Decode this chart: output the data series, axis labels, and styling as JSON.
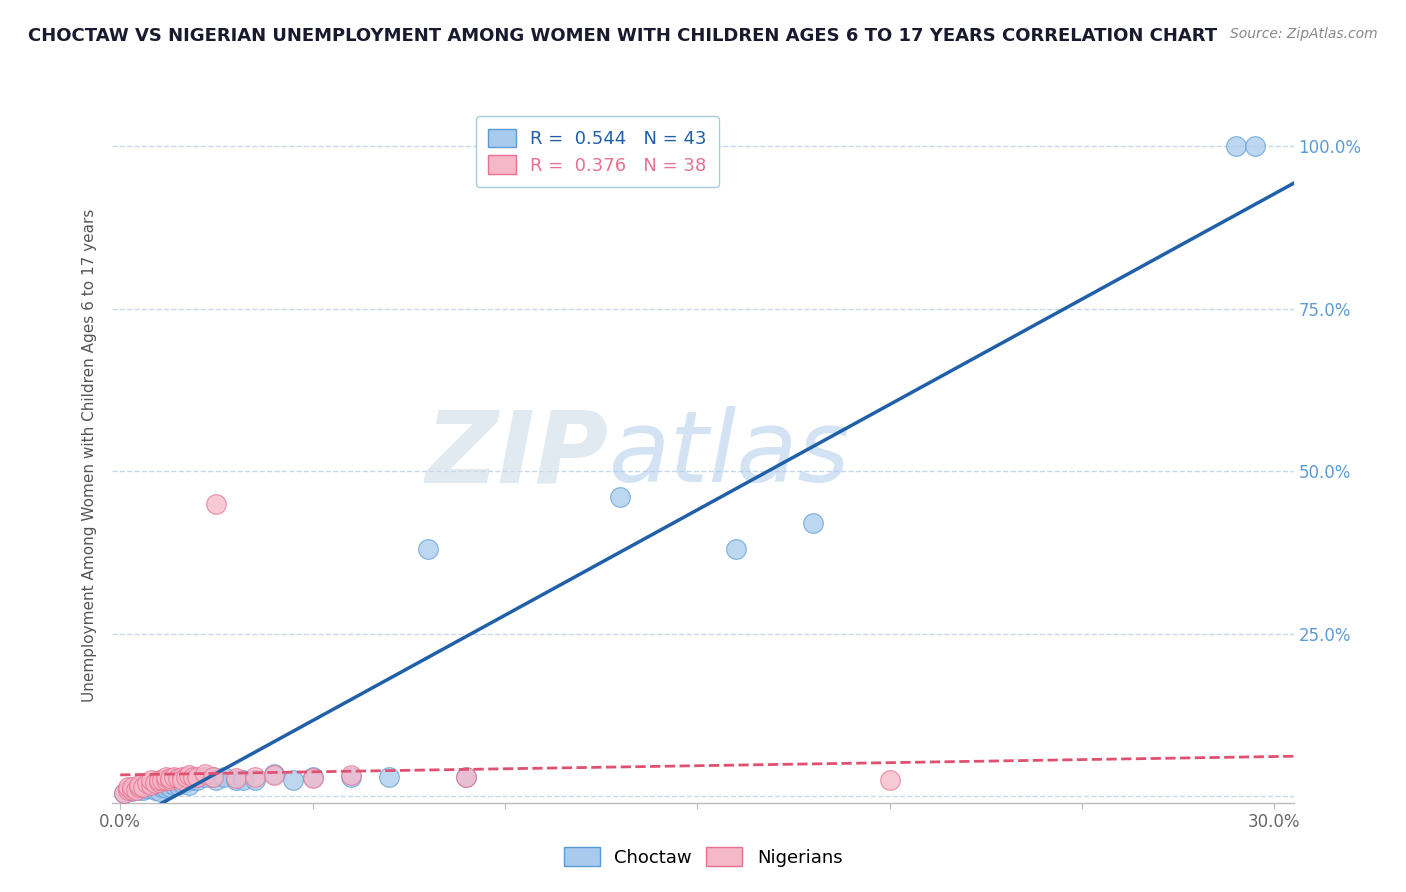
{
  "title": "CHOCTAW VS NIGERIAN UNEMPLOYMENT AMONG WOMEN WITH CHILDREN AGES 6 TO 17 YEARS CORRELATION CHART",
  "source": "Source: ZipAtlas.com",
  "ylabel": "Unemployment Among Women with Children Ages 6 to 17 years",
  "xlim": [
    -0.002,
    0.305
  ],
  "ylim": [
    -0.01,
    1.06
  ],
  "xticks": [
    0.0,
    0.05,
    0.1,
    0.15,
    0.2,
    0.25,
    0.3
  ],
  "xticklabels": [
    "0.0%",
    "",
    "",
    "",
    "",
    "",
    "30.0%"
  ],
  "yticks": [
    0.0,
    0.25,
    0.5,
    0.75,
    1.0
  ],
  "yticklabels_left": [
    "",
    "",
    "",
    "",
    ""
  ],
  "yticklabels_right": [
    "",
    "25.0%",
    "50.0%",
    "75.0%",
    "100.0%"
  ],
  "choctaw_color": "#A8CAED",
  "choctaw_edge_color": "#5B9BD5",
  "nigerian_color": "#F4B8C8",
  "nigerian_edge_color": "#E87090",
  "choctaw_line_color": "#2060A8",
  "nigerian_line_color": "#E05070",
  "choctaw_R": 0.544,
  "choctaw_N": 43,
  "nigerian_R": 0.376,
  "nigerian_N": 38,
  "watermark_zip": "ZIP",
  "watermark_atlas": "atlas",
  "background_color": "#FFFFFF",
  "grid_color": "#C8D8E8",
  "title_color": "#1A1A2E",
  "axis_label_color": "#555555",
  "right_tick_color": "#5B9BD5",
  "legend_text_color": "#2060A8",
  "legend_n_color": "#2060A8",
  "choctaw_x": [
    0.001,
    0.003,
    0.005,
    0.005,
    0.006,
    0.007,
    0.008,
    0.009,
    0.01,
    0.01,
    0.011,
    0.012,
    0.012,
    0.013,
    0.013,
    0.014,
    0.015,
    0.015,
    0.016,
    0.017,
    0.018,
    0.018,
    0.019,
    0.02,
    0.022,
    0.024,
    0.025,
    0.027,
    0.03,
    0.032,
    0.035,
    0.04,
    0.045,
    0.05,
    0.06,
    0.07,
    0.08,
    0.09,
    0.13,
    0.16,
    0.18,
    0.29,
    0.295
  ],
  "choctaw_y": [
    0.005,
    0.008,
    0.01,
    0.015,
    0.01,
    0.012,
    0.015,
    0.01,
    0.018,
    0.008,
    0.015,
    0.018,
    0.012,
    0.02,
    0.015,
    0.018,
    0.022,
    0.018,
    0.02,
    0.022,
    0.025,
    0.018,
    0.025,
    0.025,
    0.03,
    0.03,
    0.025,
    0.03,
    0.025,
    0.025,
    0.025,
    0.035,
    0.025,
    0.03,
    0.03,
    0.03,
    0.38,
    0.03,
    0.46,
    0.38,
    0.42,
    1.0,
    1.0
  ],
  "nigerian_x": [
    0.001,
    0.002,
    0.002,
    0.003,
    0.003,
    0.004,
    0.005,
    0.005,
    0.006,
    0.007,
    0.008,
    0.008,
    0.009,
    0.01,
    0.01,
    0.011,
    0.012,
    0.012,
    0.013,
    0.013,
    0.014,
    0.015,
    0.016,
    0.016,
    0.017,
    0.018,
    0.019,
    0.02,
    0.022,
    0.024,
    0.025,
    0.03,
    0.035,
    0.04,
    0.05,
    0.06,
    0.09,
    0.2
  ],
  "nigerian_y": [
    0.005,
    0.01,
    0.015,
    0.01,
    0.015,
    0.01,
    0.015,
    0.018,
    0.015,
    0.02,
    0.018,
    0.025,
    0.02,
    0.022,
    0.025,
    0.025,
    0.025,
    0.03,
    0.025,
    0.028,
    0.03,
    0.028,
    0.03,
    0.025,
    0.03,
    0.032,
    0.03,
    0.03,
    0.035,
    0.03,
    0.45,
    0.028,
    0.03,
    0.032,
    0.028,
    0.032,
    0.03,
    0.025
  ]
}
